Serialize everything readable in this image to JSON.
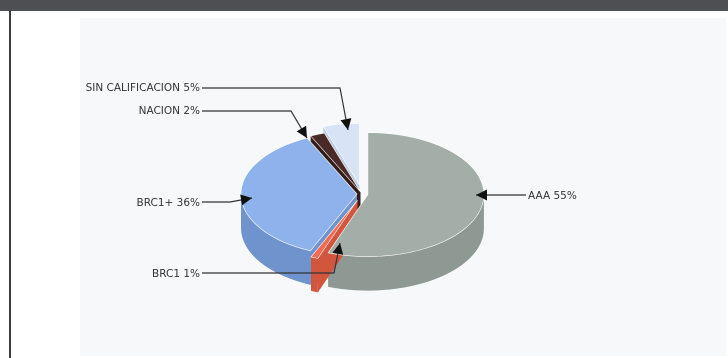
{
  "chart_data": {
    "type": "pie",
    "title": "",
    "three_d": true,
    "slices": [
      {
        "label": "AAA",
        "value": 55,
        "label_text": "AAA 55%",
        "color": "#a3aea9",
        "side_color": "#8f9994"
      },
      {
        "label": "BRC1",
        "value": 1,
        "label_text": "BRC1 1%",
        "color": "#f26b50",
        "side_color": "#d2553e"
      },
      {
        "label": "BRC1+",
        "value": 36,
        "label_text": "BRC1+ 36%",
        "color": "#8eb3ec",
        "side_color": "#6f93cc"
      },
      {
        "label": "NACION",
        "value": 2,
        "label_text": "NACION 2%",
        "color": "#4a2a26",
        "side_color": "#331c19"
      },
      {
        "label": "SIN CALIFICACION",
        "value": 5,
        "label_text": "SIN CALIFICACION 5%",
        "color": "#d8e4f6",
        "side_color": "#bccbe2"
      }
    ]
  },
  "colors": {
    "topbar": "#4d4f53",
    "frame_border": "#3a3b3e",
    "plot_background": "#f7f8f9",
    "leader_line": "#333333"
  }
}
